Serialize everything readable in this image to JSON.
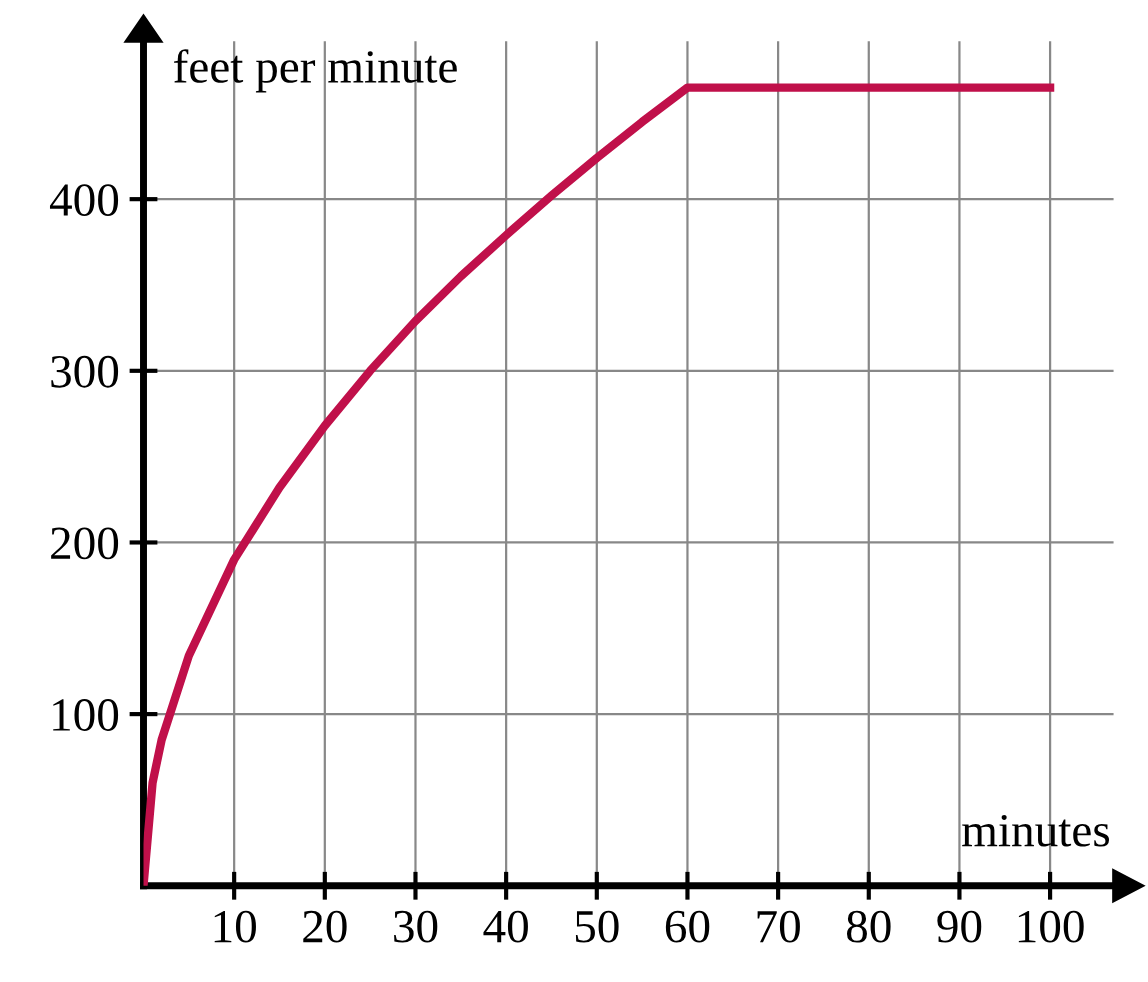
{
  "chart_data": {
    "type": "line",
    "xlabel": "minutes",
    "ylabel": "feet per minute",
    "x": [
      0,
      1,
      2,
      5,
      10,
      15,
      20,
      25,
      30,
      35,
      40,
      45,
      50,
      55,
      60,
      100
    ],
    "series": [
      {
        "color": "#c0104a",
        "values": [
          0,
          60,
          85,
          134,
          190,
          232,
          268,
          300,
          329,
          355,
          379,
          402,
          424,
          445,
          465,
          465
        ]
      }
    ],
    "xlim": [
      0,
      107
    ],
    "ylim": [
      0,
      492
    ],
    "xticks": [
      10,
      20,
      30,
      40,
      50,
      60,
      70,
      80,
      90,
      100
    ],
    "yticks": [
      100,
      200,
      300,
      400
    ],
    "grid": true,
    "marker": "none",
    "line_style": "solid"
  }
}
